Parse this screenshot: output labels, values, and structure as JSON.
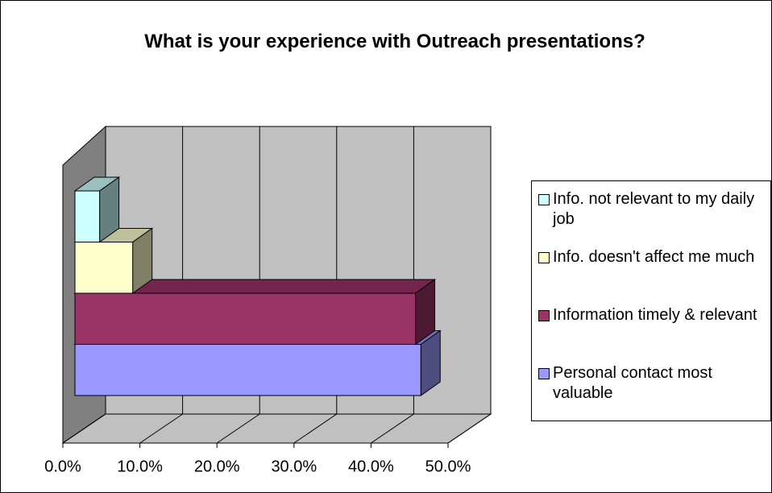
{
  "chart_data": {
    "type": "bar3d_horizontal",
    "title": "What is your experience with Outreach presentations?",
    "series": [
      {
        "name": "Info. not relevant to my daily job",
        "color": "#ccffff",
        "values": [
          3.2
        ]
      },
      {
        "name": "Info. doesn't affect me much",
        "color": "#ffffcc",
        "values": [
          7.5
        ]
      },
      {
        "name": "Information timely & relevant",
        "color": "#993366",
        "values": [
          44.2
        ]
      },
      {
        "name": "Personal contact most valuable",
        "color": "#9999ff",
        "values": [
          44.9
        ]
      }
    ],
    "xlim": [
      0,
      50
    ],
    "xticks": [
      {
        "value": 0,
        "label": "0.0%"
      },
      {
        "value": 10,
        "label": "10.0%"
      },
      {
        "value": 20,
        "label": "20.0%"
      },
      {
        "value": 30,
        "label": "30.0%"
      },
      {
        "value": 40,
        "label": "40.0%"
      },
      {
        "value": 50,
        "label": "50.0%"
      }
    ],
    "grid": true,
    "legend": "right"
  }
}
